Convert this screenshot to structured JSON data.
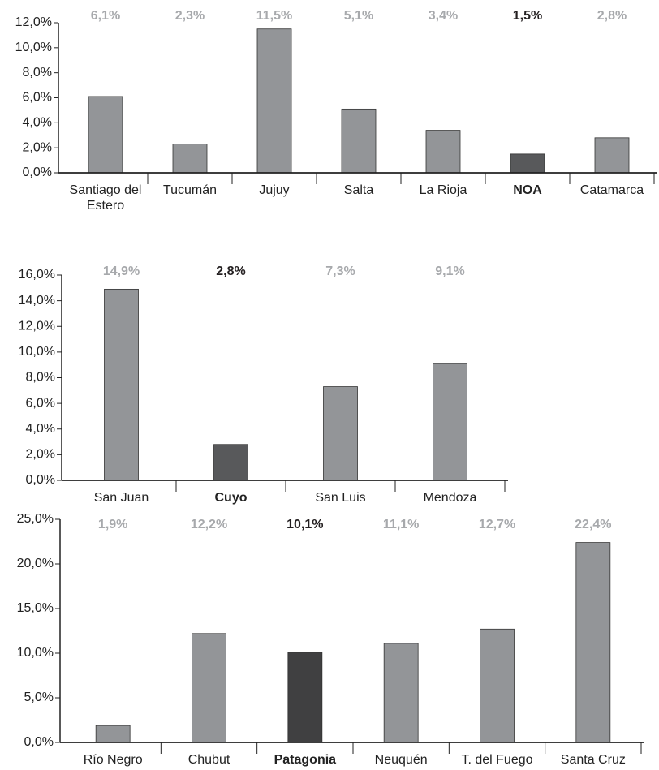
{
  "chart_data": [
    {
      "type": "bar",
      "categories": [
        "Santiago del Estero",
        "Tucumán",
        "Jujuy",
        "Salta",
        "La Rioja",
        "NOA",
        "Catamarca"
      ],
      "values": [
        6.1,
        2.3,
        11.5,
        5.1,
        3.4,
        1.5,
        2.8
      ],
      "value_labels": [
        "6,1%",
        "2,3%",
        "11,5%",
        "5,1%",
        "3,4%",
        "1,5%",
        "2,8%"
      ],
      "colors": [
        "#939598",
        "#939598",
        "#939598",
        "#939598",
        "#939598",
        "#58595b",
        "#939598"
      ],
      "label_colors": [
        "#a7a9ac",
        "#a7a9ac",
        "#a7a9ac",
        "#a7a9ac",
        "#a7a9ac",
        "#231f20",
        "#a7a9ac"
      ],
      "bold": [
        false,
        false,
        false,
        false,
        false,
        true,
        false
      ],
      "ylim": [
        0,
        12
      ],
      "yticks": [
        {
          "value": 0,
          "label": "0,0%"
        },
        {
          "value": 2,
          "label": "2,0%"
        },
        {
          "value": 4,
          "label": "4,0%"
        },
        {
          "value": 6,
          "label": "6,0%"
        },
        {
          "value": 8,
          "label": "8,0%"
        },
        {
          "value": 10,
          "label": "10,0%"
        },
        {
          "value": 12,
          "label": "12,0%"
        }
      ]
    },
    {
      "type": "bar",
      "categories": [
        "San Juan",
        "Cuyo",
        "San Luis",
        "Mendoza"
      ],
      "values": [
        14.9,
        2.8,
        7.3,
        9.1
      ],
      "value_labels": [
        "14,9%",
        "2,8%",
        "7,3%",
        "9,1%"
      ],
      "colors": [
        "#939598",
        "#58595b",
        "#939598",
        "#939598"
      ],
      "label_colors": [
        "#a7a9ac",
        "#231f20",
        "#a7a9ac",
        "#a7a9ac"
      ],
      "bold": [
        false,
        true,
        false,
        false
      ],
      "ylim": [
        0,
        16
      ],
      "yticks": [
        {
          "value": 0,
          "label": "0,0%"
        },
        {
          "value": 2,
          "label": "2,0%"
        },
        {
          "value": 4,
          "label": "4,0%"
        },
        {
          "value": 6,
          "label": "6,0%"
        },
        {
          "value": 8,
          "label": "8,0%"
        },
        {
          "value": 10,
          "label": "10,0%"
        },
        {
          "value": 12,
          "label": "12,0%"
        },
        {
          "value": 14,
          "label": "14,0%"
        },
        {
          "value": 16,
          "label": "16,0%"
        }
      ]
    },
    {
      "type": "bar",
      "categories": [
        "Río Negro",
        "Chubut",
        "Patagonia",
        "Neuquén",
        "T. del Fuego",
        "Santa Cruz"
      ],
      "values": [
        1.9,
        12.2,
        10.1,
        11.1,
        12.7,
        22.4
      ],
      "value_labels": [
        "1,9%",
        "12,2%",
        "10,1%",
        "11,1%",
        "12,7%",
        "22,4%"
      ],
      "colors": [
        "#939598",
        "#939598",
        "#404041",
        "#939598",
        "#939598",
        "#939598"
      ],
      "label_colors": [
        "#a7a9ac",
        "#a7a9ac",
        "#231f20",
        "#a7a9ac",
        "#a7a9ac",
        "#a7a9ac"
      ],
      "bold": [
        false,
        false,
        true,
        false,
        false,
        false
      ],
      "ylim": [
        0,
        25
      ],
      "yticks": [
        {
          "value": 0,
          "label": "0,0%"
        },
        {
          "value": 5,
          "label": "5,0%"
        },
        {
          "value": 10,
          "label": "10,0%"
        },
        {
          "value": 15,
          "label": "15,0%"
        },
        {
          "value": 20,
          "label": "20,0%"
        },
        {
          "value": 25,
          "label": "25,0%"
        }
      ]
    }
  ]
}
